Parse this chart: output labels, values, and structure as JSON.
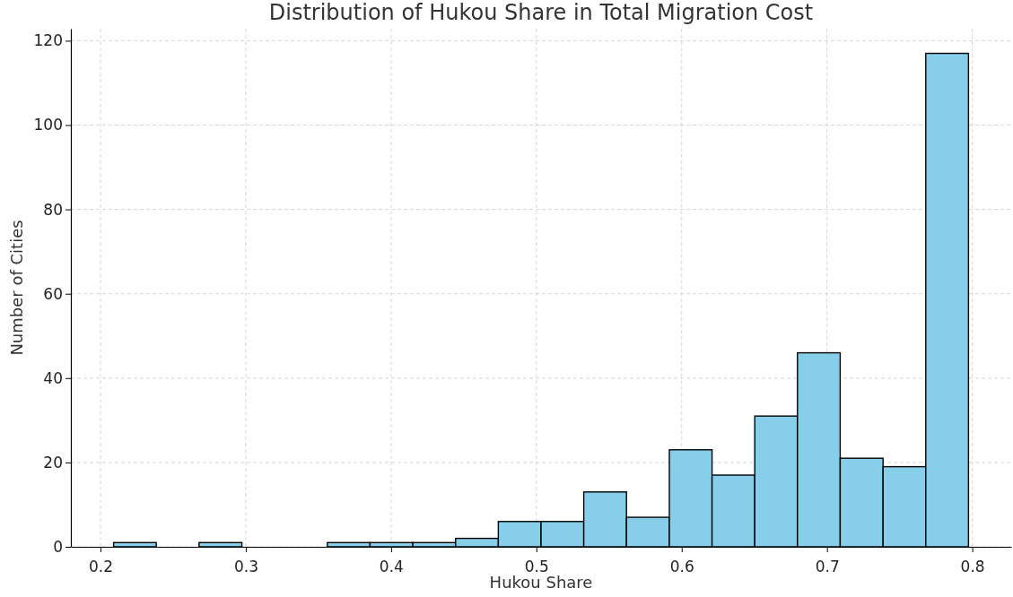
{
  "chart_data": {
    "type": "histogram",
    "title": "Distribution of Hukou Share in Total Migration Cost",
    "xlabel": "Hukou Share",
    "ylabel": "Number of Cities",
    "bins": [
      0.209,
      0.2384,
      0.2678,
      0.2973,
      0.3267,
      0.3561,
      0.3855,
      0.4149,
      0.4444,
      0.4738,
      0.5032,
      0.5326,
      0.562,
      0.5915,
      0.6209,
      0.6503,
      0.6797,
      0.7091,
      0.7386,
      0.768,
      0.7974
    ],
    "values": [
      1,
      0,
      1,
      0,
      0,
      1,
      1,
      1,
      2,
      6,
      6,
      13,
      7,
      23,
      17,
      31,
      46,
      21,
      19,
      117
    ],
    "color": "#87ceeb",
    "xlim": [
      0.1796,
      0.8268
    ],
    "xticks": [
      0.2,
      0.3,
      0.4,
      0.5,
      0.6,
      0.7,
      0.8
    ],
    "ylim": [
      0,
      122.85
    ],
    "yticks": [
      0,
      20,
      40,
      60,
      80,
      100,
      120
    ],
    "grid": true
  }
}
